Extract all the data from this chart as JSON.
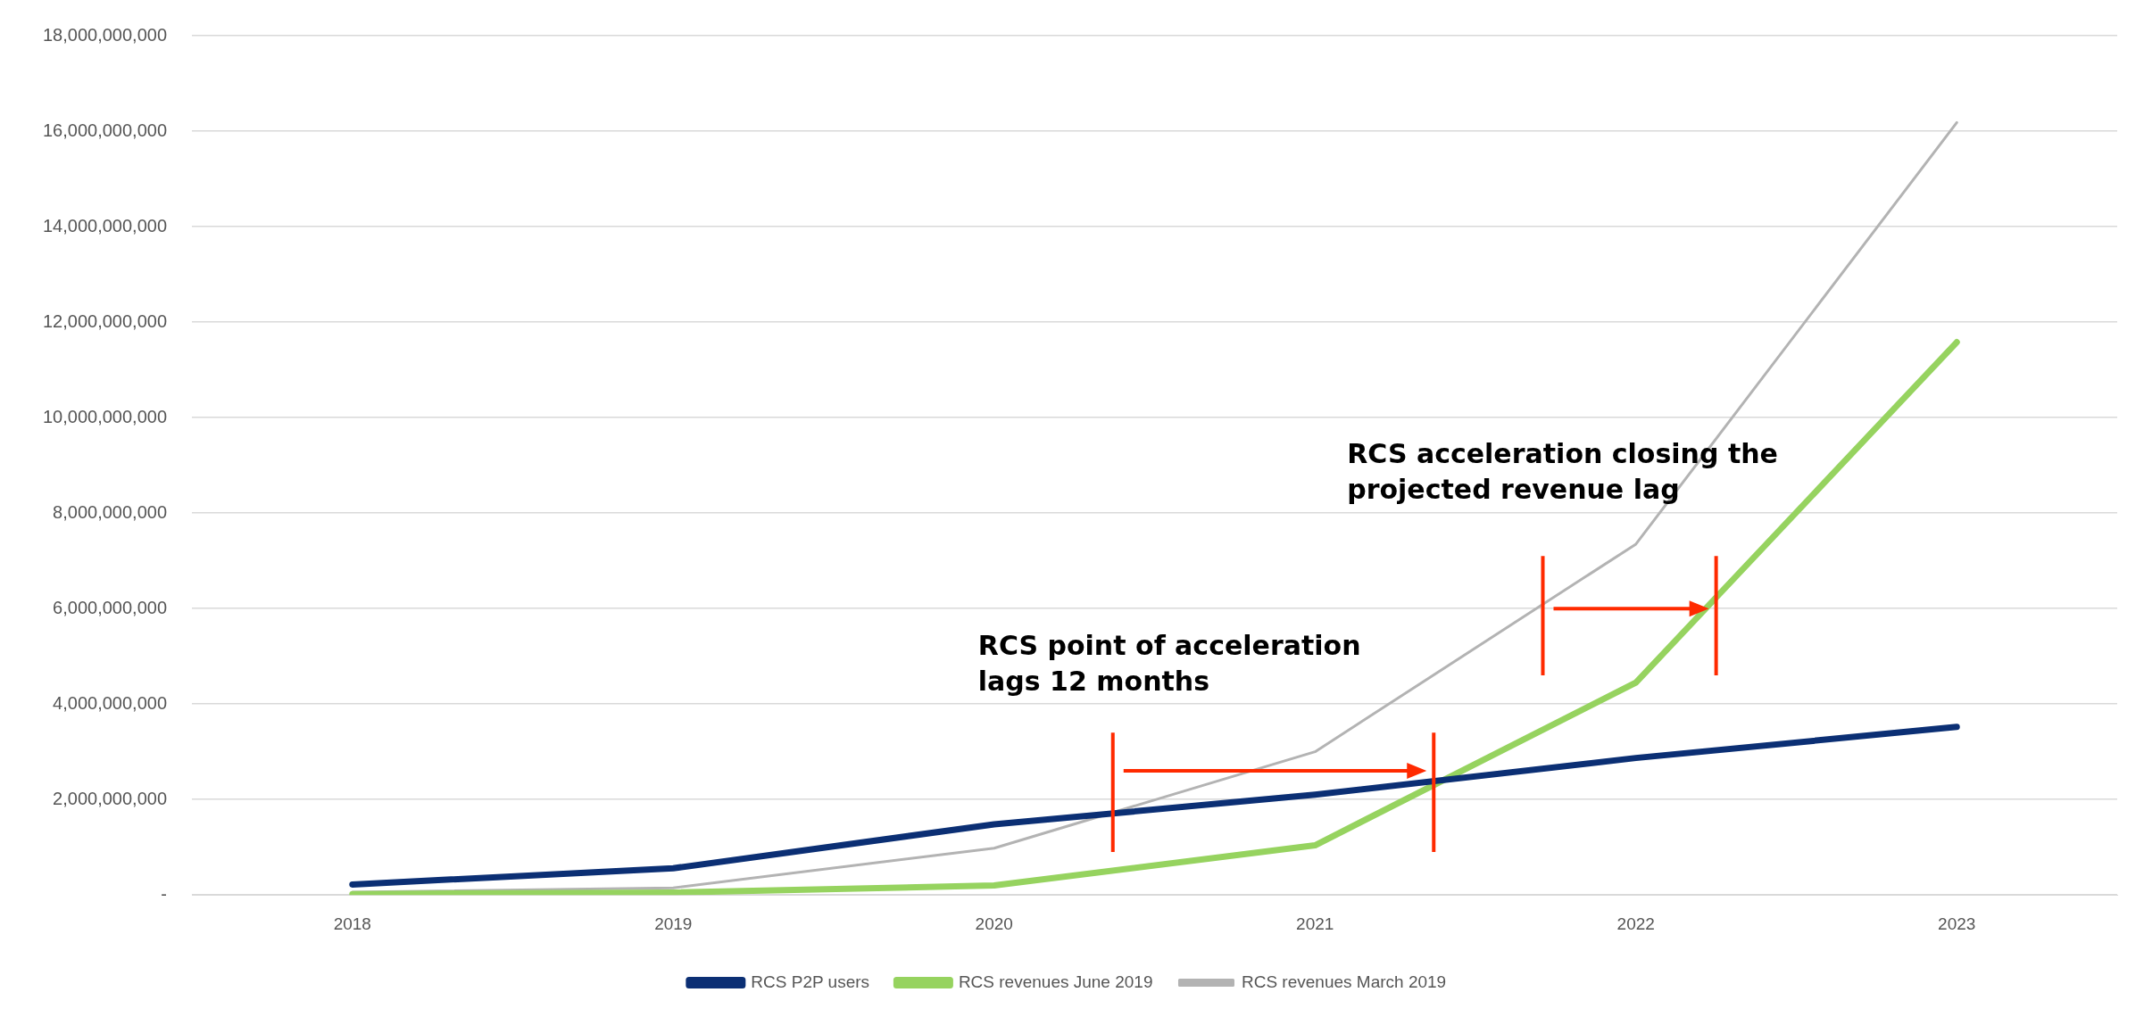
{
  "chart_data": {
    "type": "line",
    "categories": [
      "2018",
      "2019",
      "2020",
      "2021",
      "2022",
      "2023"
    ],
    "series": [
      {
        "name": "RCS P2P users",
        "color": "#0b2f74",
        "values": [
          220000000,
          560000000,
          1480000000,
          2100000000,
          2870000000,
          3520000000
        ]
      },
      {
        "name": "RCS revenues June 2019",
        "color": "#96d35f",
        "values": [
          20000000,
          50000000,
          200000000,
          1040000000,
          4450000000,
          11580000000
        ]
      },
      {
        "name": "RCS revenues March 2019",
        "color": "#b3b3b3",
        "values": [
          60000000,
          150000000,
          980000000,
          3000000000,
          7350000000,
          16180000000
        ]
      }
    ],
    "ylim": [
      0,
      18000000000
    ],
    "yticks": [
      {
        "value": 0,
        "label": "-"
      },
      {
        "value": 2000000000,
        "label": "2,000,000,000"
      },
      {
        "value": 4000000000,
        "label": "4,000,000,000"
      },
      {
        "value": 6000000000,
        "label": "6,000,000,000"
      },
      {
        "value": 8000000000,
        "label": "8,000,000,000"
      },
      {
        "value": 10000000000,
        "label": "10,000,000,000"
      },
      {
        "value": 12000000000,
        "label": "12,000,000,000"
      },
      {
        "value": 14000000000,
        "label": "14,000,000,000"
      },
      {
        "value": 16000000000,
        "label": "16,000,000,000"
      },
      {
        "value": 18000000000,
        "label": "18,000,000,000"
      }
    ],
    "grid": "y",
    "legend": "bottom",
    "marker": "none",
    "line_style": "solid",
    "annotations": [
      "RCS point of acceleration lags 12 months",
      "RCS acceleration closing the projected revenue lag"
    ]
  }
}
